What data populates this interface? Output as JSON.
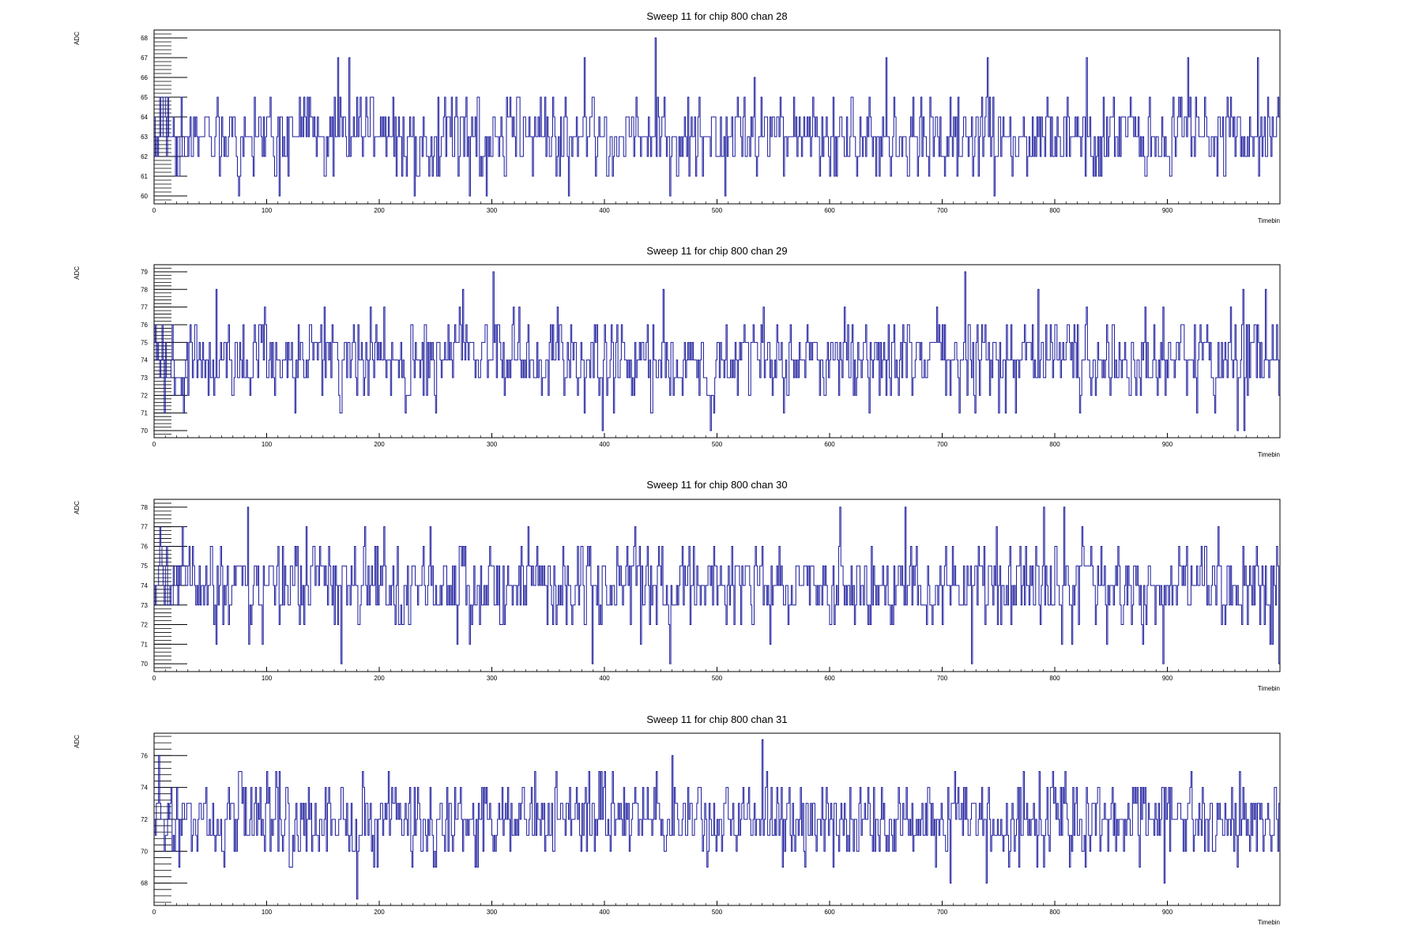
{
  "chart_data": [
    {
      "type": "line",
      "title": "Sweep 11 for chip 800 chan 28",
      "xlabel": "Timebin",
      "ylabel": "ADC",
      "xlim": [
        0,
        1000
      ],
      "ylim": [
        59.6,
        68.4
      ],
      "xticks": [
        0,
        100,
        200,
        300,
        400,
        500,
        600,
        700,
        800,
        900
      ],
      "yticks": [
        60,
        61,
        62,
        63,
        64,
        65,
        66,
        67,
        68
      ],
      "mean": 63,
      "spread": 1.1,
      "seed": 28,
      "spikes": [
        {
          "x": 75,
          "y": 60
        },
        {
          "x": 111,
          "y": 60
        },
        {
          "x": 163,
          "y": 67
        },
        {
          "x": 173,
          "y": 67
        },
        {
          "x": 231,
          "y": 60
        },
        {
          "x": 280,
          "y": 60
        },
        {
          "x": 295,
          "y": 60
        },
        {
          "x": 368,
          "y": 60
        },
        {
          "x": 382,
          "y": 67
        },
        {
          "x": 445,
          "y": 68
        },
        {
          "x": 458,
          "y": 60
        },
        {
          "x": 507,
          "y": 60
        },
        {
          "x": 650,
          "y": 67
        },
        {
          "x": 746,
          "y": 60
        },
        {
          "x": 740,
          "y": 67
        },
        {
          "x": 828,
          "y": 67
        },
        {
          "x": 918,
          "y": 67
        },
        {
          "x": 980,
          "y": 67
        }
      ]
    },
    {
      "type": "line",
      "title": "Sweep 11 for chip 800 chan 29",
      "xlabel": "Timebin",
      "ylabel": "ADC",
      "xlim": [
        0,
        1000
      ],
      "ylim": [
        69.6,
        79.4
      ],
      "xticks": [
        0,
        100,
        200,
        300,
        400,
        500,
        600,
        700,
        800,
        900
      ],
      "yticks": [
        70,
        71,
        72,
        73,
        74,
        75,
        76,
        77,
        78,
        79
      ],
      "mean": 74,
      "spread": 1.3,
      "seed": 29,
      "spikes": [
        {
          "x": 55,
          "y": 78
        },
        {
          "x": 274,
          "y": 78
        },
        {
          "x": 301,
          "y": 79
        },
        {
          "x": 398,
          "y": 70
        },
        {
          "x": 452,
          "y": 78
        },
        {
          "x": 494,
          "y": 70
        },
        {
          "x": 720,
          "y": 79
        },
        {
          "x": 785,
          "y": 78
        },
        {
          "x": 962,
          "y": 70
        },
        {
          "x": 968,
          "y": 70
        },
        {
          "x": 987,
          "y": 78
        },
        {
          "x": 880,
          "y": 77
        }
      ]
    },
    {
      "type": "line",
      "title": "Sweep 11 for chip 800 chan 30",
      "xlabel": "Timebin",
      "ylabel": "ADC",
      "xlim": [
        0,
        1000
      ],
      "ylim": [
        69.6,
        78.4
      ],
      "xticks": [
        0,
        100,
        200,
        300,
        400,
        500,
        600,
        700,
        800,
        900
      ],
      "yticks": [
        70,
        71,
        72,
        73,
        74,
        75,
        76,
        77,
        78
      ],
      "mean": 74,
      "spread": 1.2,
      "seed": 30,
      "spikes": [
        {
          "x": 83,
          "y": 78
        },
        {
          "x": 166,
          "y": 70
        },
        {
          "x": 389,
          "y": 70
        },
        {
          "x": 458,
          "y": 70
        },
        {
          "x": 609,
          "y": 78
        },
        {
          "x": 667,
          "y": 78
        },
        {
          "x": 726,
          "y": 70
        },
        {
          "x": 790,
          "y": 78
        },
        {
          "x": 808,
          "y": 78
        },
        {
          "x": 896,
          "y": 70
        },
        {
          "x": 999,
          "y": 70
        },
        {
          "x": 5,
          "y": 77
        }
      ]
    },
    {
      "type": "line",
      "title": "Sweep 11 for chip 800 chan 31",
      "xlabel": "Timebin",
      "ylabel": "ADC",
      "xlim": [
        0,
        1000
      ],
      "ylim": [
        66.6,
        77.4
      ],
      "xticks": [
        0,
        100,
        200,
        300,
        400,
        500,
        600,
        700,
        800,
        900
      ],
      "yticks": [
        68,
        70,
        72,
        74,
        76
      ],
      "mean": 72,
      "spread": 1.4,
      "seed": 31,
      "spikes": [
        {
          "x": 180,
          "y": 67
        },
        {
          "x": 287,
          "y": 69
        },
        {
          "x": 540,
          "y": 77
        },
        {
          "x": 707,
          "y": 68
        },
        {
          "x": 739,
          "y": 68
        },
        {
          "x": 897,
          "y": 68
        },
        {
          "x": 4,
          "y": 76
        },
        {
          "x": 460,
          "y": 76
        }
      ]
    }
  ]
}
